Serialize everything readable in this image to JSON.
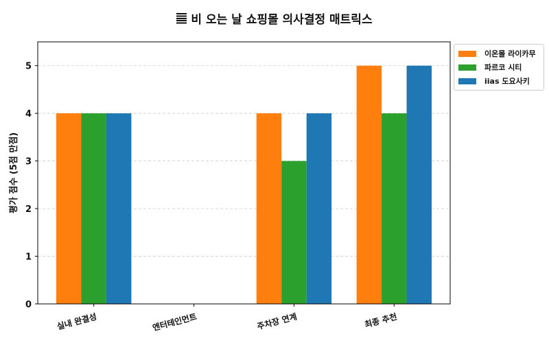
{
  "chart_data": {
    "type": "bar",
    "title": "비 오는 날 쇼핑몰 의사결정 매트릭스",
    "title_icon": "horizontal-lines-icon",
    "xlabel": "",
    "ylabel": "평가 점수 (5점 만점)",
    "categories": [
      "실내 완결성",
      "엔터테인먼트",
      "주차장 연계",
      "최종 추천"
    ],
    "ylim": [
      0,
      5.5
    ],
    "yticks": [
      0,
      1,
      2,
      3,
      4,
      5
    ],
    "grid": "y-dashed",
    "legend_position": "outside-top-right",
    "series": [
      {
        "name": "이온몰 라이카무",
        "color": "#ff7f0e",
        "values": [
          4,
          0,
          4,
          5
        ]
      },
      {
        "name": "파르코 시티",
        "color": "#2ca02c",
        "values": [
          4,
          0,
          3,
          4
        ]
      },
      {
        "name": "iias 도요사키",
        "color": "#1f77b4",
        "values": [
          4,
          0,
          4,
          5
        ]
      }
    ]
  }
}
